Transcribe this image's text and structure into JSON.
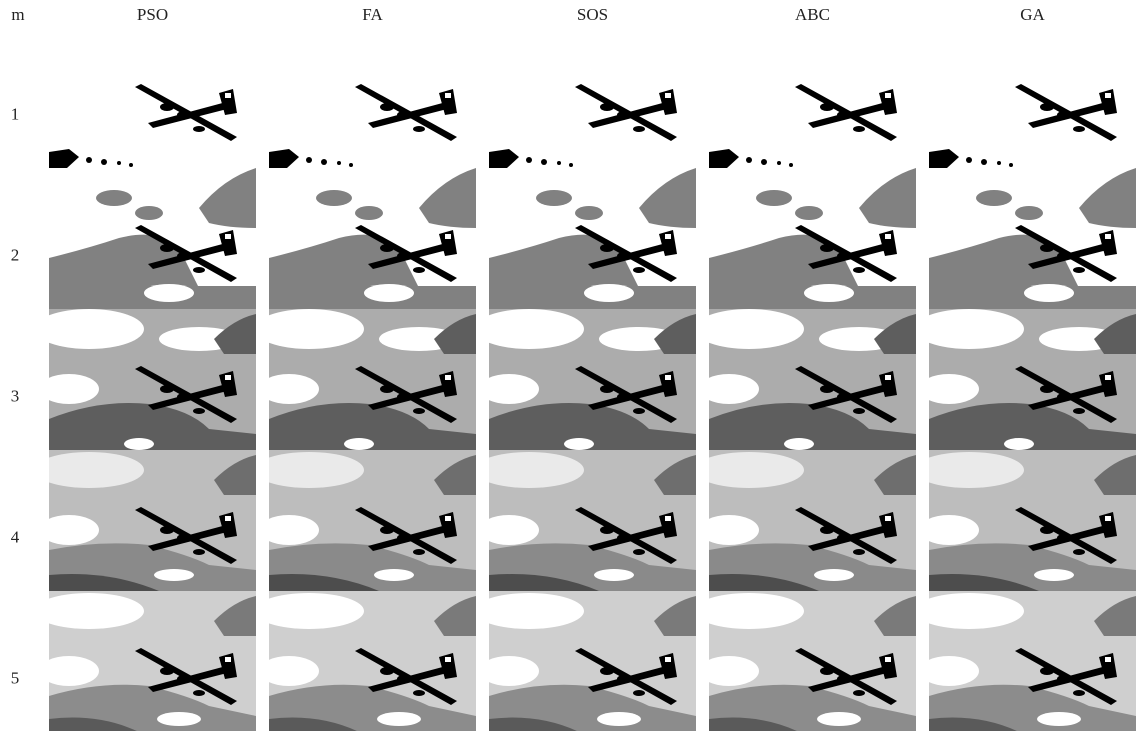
{
  "header": {
    "label": "m",
    "methods": [
      "PSO",
      "FA",
      "SOS",
      "ABC",
      "GA"
    ]
  },
  "rows": [
    {
      "label": "1"
    },
    {
      "label": "2"
    },
    {
      "label": "3"
    },
    {
      "label": "4"
    },
    {
      "label": "5"
    }
  ]
}
